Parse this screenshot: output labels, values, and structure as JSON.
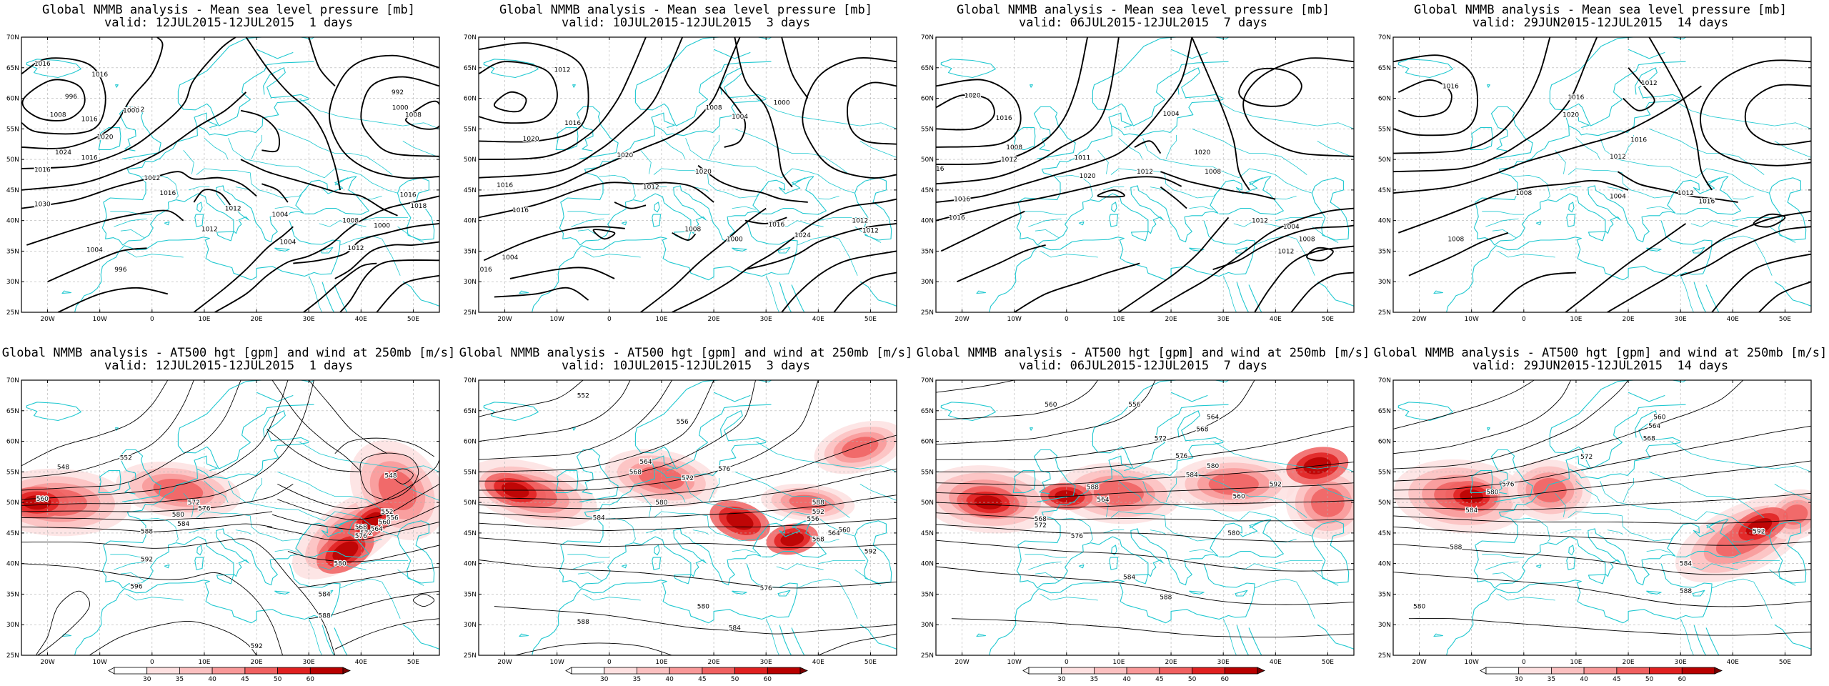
{
  "colors": {
    "coast": "#20c8d0",
    "contour": "#000000",
    "grid": "#b0b0b0",
    "jet_levels": [
      "#ffffff",
      "#fde0e0",
      "#fbc0c0",
      "#f89898",
      "#f06060",
      "#e02020",
      "#b80000"
    ]
  },
  "axes": {
    "lon_labels": [
      "20W",
      "10W",
      "0",
      "10E",
      "20E",
      "30E",
      "40E",
      "50E"
    ],
    "lat_labels": [
      "70N",
      "65N",
      "60N",
      "55N",
      "50N",
      "45N",
      "40N",
      "35N",
      "30N",
      "25N"
    ]
  },
  "colorbar_labels": [
    "30",
    "35",
    "40",
    "45",
    "50",
    "60"
  ],
  "panels": [
    {
      "row": "slp",
      "title": "Global NMMB analysis - Mean sea level pressure [mb]",
      "subtitle": "valid: 12JUL2015-12JUL2015  1 days",
      "labels": [
        "1016",
        "1016",
        "1012",
        "1000",
        "996",
        "992",
        "1000",
        "1008",
        "1008",
        "1016",
        "1020",
        "1024",
        "1016",
        "1016",
        "1012",
        "1030",
        "1016",
        "1012",
        "1004",
        "1008",
        "1000",
        "1016",
        "1018",
        "1012",
        "1004",
        "996",
        "1004",
        "1012"
      ]
    },
    {
      "row": "slp",
      "title": "Global NMMB analysis - Mean sea level pressure [mb]",
      "subtitle": "valid: 10JUL2015-12JUL2015  3 days",
      "labels": [
        "1012",
        "1008",
        "1000",
        "1004",
        "1016",
        "1020",
        "1020",
        "1020",
        "1016",
        "1012",
        "1016",
        "1004",
        "1008",
        "1000",
        "1024",
        "1016",
        "1012",
        "1012",
        "1016"
      ]
    },
    {
      "row": "slp",
      "title": "Global NMMB analysis - Mean sea level pressure [mb]",
      "subtitle": "valid: 06JUL2015-12JUL2015  7 days",
      "labels": [
        "1020",
        "1016",
        "1004",
        "1008",
        "1012",
        "1011",
        "1020",
        "1016",
        "1016",
        "1020",
        "1016",
        "1012",
        "1008",
        "1004",
        "1008",
        "1012",
        "1012"
      ]
    },
    {
      "row": "slp",
      "title": "Global NMMB analysis - Mean sea level pressure [mb]",
      "subtitle": "valid: 29JUN2015-12JUL2015  14 days",
      "labels": [
        "1016",
        "1012",
        "1016",
        "1020",
        "1016",
        "1012",
        "1008",
        "1004",
        "1016",
        "1012",
        "1008"
      ]
    },
    {
      "row": "z500",
      "title": "Global NMMB analysis - AT500 hgt [gpm] and wind at 250mb [m/s]",
      "subtitle": "valid: 12JUL2015-12JUL2015  1 days",
      "labels": [
        "548",
        "552",
        "560",
        "548",
        "572",
        "576",
        "580",
        "584",
        "588",
        "592",
        "596",
        "552",
        "556",
        "560",
        "564",
        "568",
        "572",
        "576",
        "580",
        "584",
        "588",
        "592"
      ]
    },
    {
      "row": "z500",
      "title": "Global NMMB analysis - AT500 hgt [gpm] and wind at 250mb [m/s]",
      "subtitle": "valid: 10JUL2015-12JUL2015  3 days",
      "labels": [
        "552",
        "556",
        "564",
        "568",
        "572",
        "576",
        "580",
        "584",
        "588",
        "592",
        "556",
        "560",
        "564",
        "568",
        "576",
        "580",
        "584",
        "588",
        "592"
      ]
    },
    {
      "row": "z500",
      "title": "Global NMMB analysis - AT500 hgt [gpm] and wind at 250mb [m/s]",
      "subtitle": "valid: 06JUL2015-12JUL2015  7 days",
      "labels": [
        "556",
        "560",
        "564",
        "568",
        "572",
        "576",
        "580",
        "584",
        "588",
        "592",
        "560",
        "564",
        "568",
        "572",
        "576",
        "580",
        "584",
        "588"
      ]
    },
    {
      "row": "z500",
      "title": "Global NMMB analysis - AT500 hgt [gpm] and wind at 250mb [m/s]",
      "subtitle": "valid: 29JUN2015-12JUL2015  14 days",
      "labels": [
        "560",
        "564",
        "568",
        "572",
        "576",
        "580",
        "584",
        "588",
        "592",
        "584",
        "588",
        "580"
      ]
    }
  ]
}
